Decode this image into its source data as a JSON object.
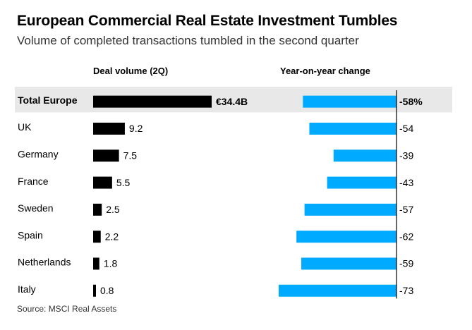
{
  "header": {
    "title": "European Commercial Real Estate Investment Tumbles",
    "subtitle": "Volume of completed transactions tumbled in the second quarter"
  },
  "columns": {
    "volume": "Deal volume (2Q)",
    "change": "Year-on-year change"
  },
  "source": "Source: MSCI Real Assets",
  "colors": {
    "volume_bar": "#000000",
    "change_bar": "#00aaff",
    "highlight_row": "#e8e8e8",
    "axis": "#000000"
  },
  "chart_data": {
    "type": "bar",
    "title": "European Commercial Real Estate Investment Tumbles",
    "subtitle": "Volume of completed transactions tumbled in the second quarter",
    "categories": [
      "Total Europe",
      "UK",
      "Germany",
      "France",
      "Sweden",
      "Spain",
      "Netherlands",
      "Italy"
    ],
    "highlight": "Total Europe",
    "series": [
      {
        "name": "Deal volume (2Q)",
        "unit": "€ billions",
        "values": [
          34.4,
          9.2,
          7.5,
          5.5,
          2.5,
          2.2,
          1.8,
          0.8
        ],
        "labels": [
          "€34.4B",
          "9.2",
          "7.5",
          "5.5",
          "2.5",
          "2.2",
          "1.8",
          "0.8"
        ]
      },
      {
        "name": "Year-on-year change",
        "unit": "%",
        "values": [
          -58,
          -54,
          -39,
          -43,
          -57,
          -62,
          -59,
          -73
        ],
        "labels": [
          "-58%",
          "-54",
          "-39",
          "-43",
          "-57",
          "-62",
          "-59",
          "-73"
        ]
      }
    ]
  }
}
